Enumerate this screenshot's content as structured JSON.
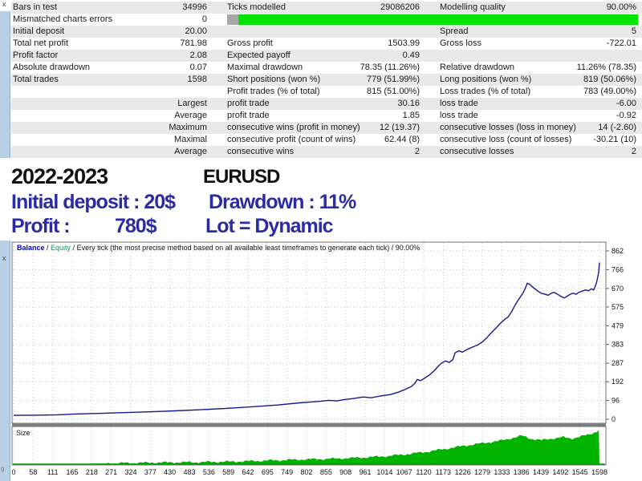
{
  "window": {
    "close_top_label": "x",
    "close_chart_label": "x",
    "artifact_top": "ln",
    "artifact_bottom": "g"
  },
  "report_table": {
    "rows": [
      {
        "c1": "Bars in test",
        "c2": "34996",
        "c3": "Ticks modelled",
        "c4": "29086206",
        "c5": "Modelling quality",
        "c6": "90.00%",
        "progress_bar": false
      },
      {
        "c1": "Mismatched charts errors",
        "c2": "0",
        "c3": "",
        "c4": "",
        "c5": "",
        "c6": "",
        "progress_bar": true
      },
      {
        "c1": "Initial deposit",
        "c2": "20.00",
        "c3": "",
        "c4": "",
        "c5": "Spread",
        "c6": "5",
        "progress_bar": false
      },
      {
        "c1": "Total net profit",
        "c2": "781.98",
        "c3": "Gross profit",
        "c4": "1503.99",
        "c5": "Gross loss",
        "c6": "-722.01",
        "progress_bar": false
      },
      {
        "c1": "Profit factor",
        "c2": "2.08",
        "c3": "Expected payoff",
        "c4": "0.49",
        "c5": "",
        "c6": "",
        "progress_bar": false
      },
      {
        "c1": "Absolute drawdown",
        "c2": "0.07",
        "c3": "Maximal drawdown",
        "c4": "78.35 (11.26%)",
        "c5": "Relative drawdown",
        "c6": "11.26% (78.35)",
        "progress_bar": false
      },
      {
        "c1": "Total trades",
        "c2": "1598",
        "c3": "Short positions (won %)",
        "c4": "779 (51.99%)",
        "c5": "Long positions (won %)",
        "c6": "819 (50.06%)",
        "progress_bar": false
      },
      {
        "c1": "",
        "c2": "",
        "c3": "Profit trades (% of total)",
        "c4": "815 (51.00%)",
        "c5": "Loss trades (% of total)",
        "c6": "783 (49.00%)",
        "progress_bar": false
      },
      {
        "c1": "",
        "c2": "Largest",
        "c3": "profit trade",
        "c4": "30.16",
        "c5": "loss trade",
        "c6": "-6.00",
        "progress_bar": false
      },
      {
        "c1": "",
        "c2": "Average",
        "c3": "profit trade",
        "c4": "1.85",
        "c5": "loss trade",
        "c6": "-0.92",
        "progress_bar": false
      },
      {
        "c1": "",
        "c2": "Maximum",
        "c3": "consecutive wins (profit in money)",
        "c4": "12 (19.37)",
        "c5": "consecutive losses (loss in money)",
        "c6": "14 (-2.60)",
        "progress_bar": false
      },
      {
        "c1": "",
        "c2": "Maximal",
        "c3": "consecutive profit (count of wins)",
        "c4": "62.44 (8)",
        "c5": "consecutive loss (count of losses)",
        "c6": "-30.21 (10)",
        "progress_bar": false
      },
      {
        "c1": "",
        "c2": "Average",
        "c3": "consecutive wins",
        "c4": "2",
        "c5": "consecutive losses",
        "c6": "2",
        "progress_bar": false
      }
    ],
    "progress_green": "#00e400",
    "progress_gray": "#a8a8a8",
    "row_alt_color": "#e9e9e9"
  },
  "banner": {
    "period": "2022-2023",
    "symbol": "EURUSD",
    "deposit_label": "Initial deposit : 20$",
    "drawdown_label": "Drawdown : 11%",
    "profit_label": "Profit :",
    "profit_value": "780$",
    "lot_label": "Lot = Dynamic",
    "accent_color": "#2b2ba6"
  },
  "chart_data": {
    "type": "line",
    "title": "Balance / Equity / Every tick (the most precise method based on all available least timeframes to generate each tick) / 90.00%",
    "legend": {
      "balance_label": "Balance",
      "separator1": " / ",
      "equity_label": "Equity",
      "separator2": " / ",
      "method_text": "Every tick (the most precise method based on all available least timeframes to generate each tick) / 90.00%"
    },
    "balance_color": "#18188e",
    "equity_label_color": "#00a050",
    "balance_label_color": "#0000cc",
    "size_pane_label": "Size",
    "size_bar_color": "#00b400",
    "size_baseline_color": "#009800",
    "grid": "dotted",
    "legend_position": "top-left",
    "ylim": [
      0,
      862
    ],
    "xlim": [
      0,
      1650
    ],
    "y_ticks": [
      862,
      766,
      670,
      575,
      479,
      383,
      287,
      192,
      96,
      0
    ],
    "x_ticks": [
      "0",
      "58",
      "111",
      "165",
      "218",
      "271",
      "324",
      "377",
      "430",
      "483",
      "536",
      "589",
      "642",
      "695",
      "749",
      "802",
      "855",
      "908",
      "961",
      "1014",
      "1067",
      "1120",
      "1173",
      "1226",
      "1279",
      "1333",
      "1386",
      "1439",
      "1492",
      "1545",
      "1598"
    ],
    "series": [
      {
        "name": "Balance",
        "points": [
          [
            0,
            20
          ],
          [
            60,
            21
          ],
          [
            120,
            23
          ],
          [
            170,
            27
          ],
          [
            230,
            30
          ],
          [
            300,
            34
          ],
          [
            370,
            38
          ],
          [
            440,
            43
          ],
          [
            510,
            49
          ],
          [
            580,
            56
          ],
          [
            650,
            64
          ],
          [
            720,
            73
          ],
          [
            780,
            84
          ],
          [
            830,
            91
          ],
          [
            860,
            97
          ],
          [
            882,
            94
          ],
          [
            900,
            100
          ],
          [
            925,
            106
          ],
          [
            954,
            114
          ],
          [
            975,
            110
          ],
          [
            1000,
            119
          ],
          [
            1029,
            127
          ],
          [
            1050,
            139
          ],
          [
            1068,
            153
          ],
          [
            1085,
            168
          ],
          [
            1095,
            185
          ],
          [
            1101,
            204
          ],
          [
            1110,
            198
          ],
          [
            1122,
            212
          ],
          [
            1135,
            228
          ],
          [
            1148,
            250
          ],
          [
            1160,
            275
          ],
          [
            1167,
            287
          ],
          [
            1178,
            299
          ],
          [
            1188,
            291
          ],
          [
            1198,
            305
          ],
          [
            1204,
            340
          ],
          [
            1214,
            350
          ],
          [
            1224,
            344
          ],
          [
            1238,
            358
          ],
          [
            1252,
            370
          ],
          [
            1266,
            380
          ],
          [
            1280,
            398
          ],
          [
            1292,
            420
          ],
          [
            1304,
            445
          ],
          [
            1316,
            468
          ],
          [
            1328,
            492
          ],
          [
            1340,
            512
          ],
          [
            1349,
            524
          ],
          [
            1358,
            550
          ],
          [
            1368,
            585
          ],
          [
            1379,
            618
          ],
          [
            1390,
            648
          ],
          [
            1398,
            680
          ],
          [
            1401,
            697
          ],
          [
            1408,
            690
          ],
          [
            1415,
            678
          ],
          [
            1422,
            668
          ],
          [
            1430,
            656
          ],
          [
            1440,
            645
          ],
          [
            1450,
            640
          ],
          [
            1458,
            635
          ],
          [
            1466,
            645
          ],
          [
            1474,
            650
          ],
          [
            1482,
            642
          ],
          [
            1490,
            632
          ],
          [
            1502,
            621
          ],
          [
            1510,
            630
          ],
          [
            1518,
            640
          ],
          [
            1526,
            646
          ],
          [
            1534,
            640
          ],
          [
            1542,
            650
          ],
          [
            1552,
            657
          ],
          [
            1560,
            662
          ],
          [
            1568,
            658
          ],
          [
            1576,
            668
          ],
          [
            1582,
            662
          ],
          [
            1586,
            678
          ],
          [
            1590,
            700
          ],
          [
            1593,
            725
          ],
          [
            1596,
            755
          ],
          [
            1598,
            802
          ]
        ]
      }
    ],
    "size_profile": [
      [
        0,
        0.0
      ],
      [
        200,
        0.01
      ],
      [
        300,
        0.03
      ],
      [
        400,
        0.045
      ],
      [
        500,
        0.055
      ],
      [
        600,
        0.07
      ],
      [
        700,
        0.1
      ],
      [
        800,
        0.13
      ],
      [
        880,
        0.15
      ],
      [
        950,
        0.18
      ],
      [
        1020,
        0.22
      ],
      [
        1080,
        0.28
      ],
      [
        1130,
        0.34
      ],
      [
        1180,
        0.42
      ],
      [
        1230,
        0.5
      ],
      [
        1280,
        0.57
      ],
      [
        1330,
        0.64
      ],
      [
        1360,
        0.71
      ],
      [
        1386,
        0.77
      ],
      [
        1412,
        0.69
      ],
      [
        1440,
        0.65
      ],
      [
        1470,
        0.7
      ],
      [
        1500,
        0.73
      ],
      [
        1522,
        0.69
      ],
      [
        1545,
        0.75
      ],
      [
        1566,
        0.79
      ],
      [
        1580,
        0.84
      ],
      [
        1590,
        0.89
      ],
      [
        1598,
        0.94
      ]
    ]
  }
}
